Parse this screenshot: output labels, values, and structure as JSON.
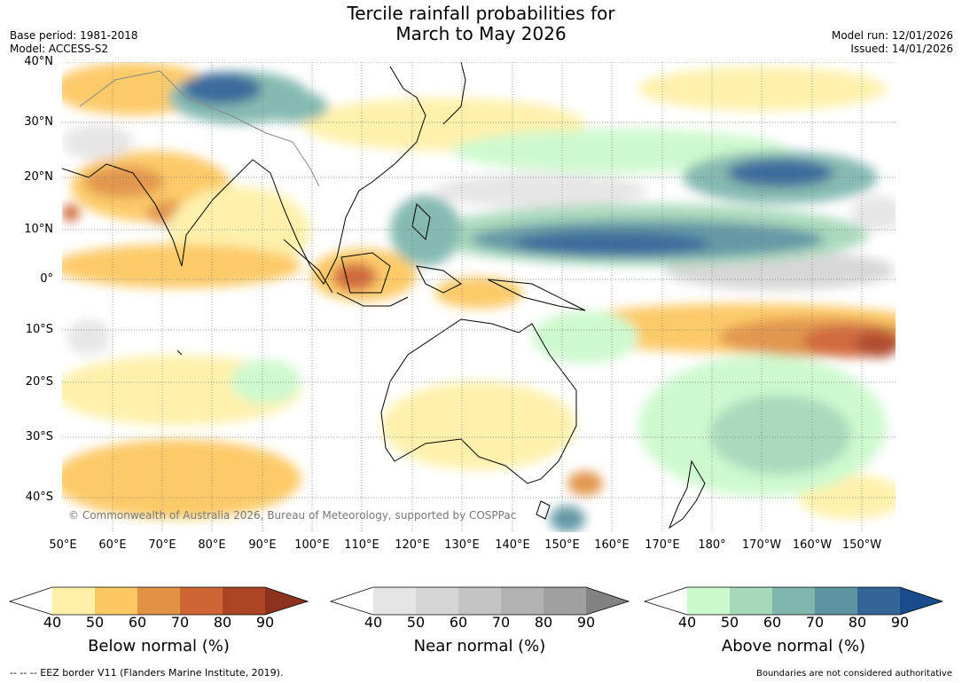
{
  "title": {
    "line1": "Tercile rainfall probabilities for",
    "line2": "March to May 2026"
  },
  "meta": {
    "base_period": "Base period: 1981-2018",
    "model": "Model: ACCESS-S2",
    "model_run": "Model run: 12/01/2026",
    "issued": "Issued: 14/01/2026"
  },
  "map": {
    "lat_labels": [
      "40°N",
      "30°N",
      "20°N",
      "10°N",
      "0°",
      "10°S",
      "20°S",
      "30°S",
      "40°S"
    ],
    "lon_labels": [
      "50°E",
      "60°E",
      "70°E",
      "80°E",
      "90°E",
      "100°E",
      "110°E",
      "120°E",
      "130°E",
      "140°E",
      "150°E",
      "160°E",
      "170°E",
      "180°",
      "170°W",
      "160°W",
      "150°W"
    ],
    "copyright": "© Commonwealth of Australia 2026, Bureau of Meteorology, supported by COSPPac"
  },
  "colorbars": [
    {
      "label": "Below normal (%)",
      "ticks": [
        "40",
        "50",
        "60",
        "70",
        "80",
        "90"
      ],
      "low_color": "#ffffff",
      "colors": [
        "#fff0a8",
        "#fdc862",
        "#e19244",
        "#cf6434",
        "#ad4525"
      ],
      "high_color": "#8e3220"
    },
    {
      "label": "Near normal (%)",
      "ticks": [
        "40",
        "50",
        "60",
        "70",
        "80",
        "90"
      ],
      "low_color": "#ffffff",
      "colors": [
        "#e5e5e5",
        "#d5d5d5",
        "#c4c4c4",
        "#b2b2b2",
        "#a0a0a0"
      ],
      "high_color": "#828282"
    },
    {
      "label": "Above normal (%)",
      "ticks": [
        "40",
        "50",
        "60",
        "70",
        "80",
        "90"
      ],
      "low_color": "#ffffff",
      "colors": [
        "#ccf9cc",
        "#a6d8ba",
        "#80b7ad",
        "#5d94a2",
        "#336597"
      ],
      "high_color": "#184c8c"
    }
  ],
  "footer": {
    "eez": "--  --  -- EEZ border V11 (Flanders Marine Institute, 2019).",
    "boundaries": "Boundaries are not considered authoritative"
  }
}
